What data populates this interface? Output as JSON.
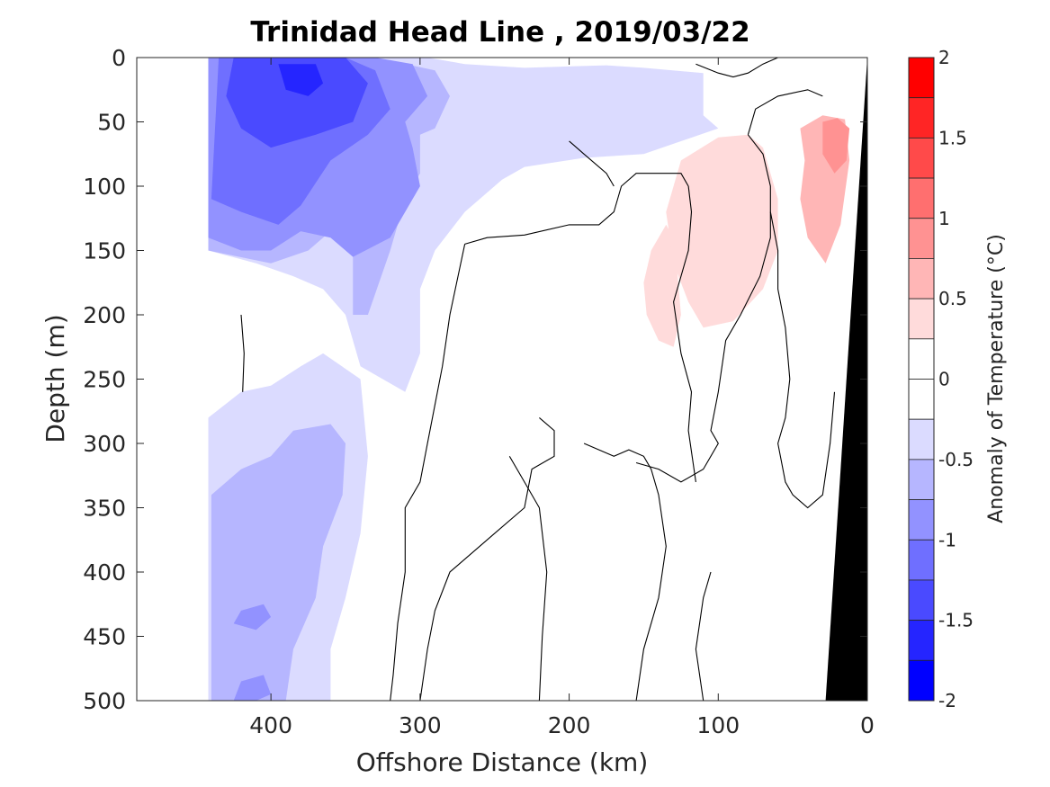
{
  "chart_data": {
    "type": "contour",
    "title": "Trinidad Head Line , 2019/03/22",
    "xlabel": "Offshore Distance (km)",
    "ylabel": "Depth (m)",
    "xlim": [
      490,
      0
    ],
    "ylim": [
      0,
      500
    ],
    "x_reversed": true,
    "y_reversed": true,
    "xticks": [
      "400",
      "300",
      "200",
      "100",
      "0"
    ],
    "xtick_values": [
      400,
      300,
      200,
      100,
      0
    ],
    "yticks": [
      "0",
      "50",
      "100",
      "150",
      "200",
      "250",
      "300",
      "350",
      "400",
      "450",
      "500"
    ],
    "ytick_values": [
      0,
      50,
      100,
      150,
      200,
      250,
      300,
      350,
      400,
      450,
      500
    ],
    "colorbar": {
      "label": "Anomaly of Temperature (°C)",
      "range": [
        -2,
        2
      ],
      "tick_labels": [
        "2",
        "1.5",
        "1",
        "0.5",
        "0",
        "-0.5",
        "-1",
        "-1.5",
        "-2"
      ],
      "tick_values": [
        2,
        1.5,
        1,
        0.5,
        0,
        -0.5,
        -1,
        -1.5,
        -2
      ],
      "levels": [
        {
          "min": 1.75,
          "max": 2.0,
          "color": "#ff0000"
        },
        {
          "min": 1.5,
          "max": 1.75,
          "color": "#ff2525"
        },
        {
          "min": 1.25,
          "max": 1.5,
          "color": "#ff4a4a"
        },
        {
          "min": 1.0,
          "max": 1.25,
          "color": "#ff6f6f"
        },
        {
          "min": 0.75,
          "max": 1.0,
          "color": "#ff9292"
        },
        {
          "min": 0.5,
          "max": 0.75,
          "color": "#ffb6b6"
        },
        {
          "min": 0.25,
          "max": 0.5,
          "color": "#ffdbdb"
        },
        {
          "min": 0.0,
          "max": 0.25,
          "color": "#ffffff"
        },
        {
          "min": -0.25,
          "max": 0.0,
          "color": "#ffffff"
        },
        {
          "min": -0.5,
          "max": -0.25,
          "color": "#dbdbff"
        },
        {
          "min": -0.75,
          "max": -0.5,
          "color": "#b6b6ff"
        },
        {
          "min": -1.0,
          "max": -0.75,
          "color": "#9292ff"
        },
        {
          "min": -1.25,
          "max": -1.0,
          "color": "#6f6fff"
        },
        {
          "min": -1.5,
          "max": -1.25,
          "color": "#4a4aff"
        },
        {
          "min": -1.75,
          "max": -1.5,
          "color": "#2525ff"
        },
        {
          "min": -2.0,
          "max": -1.75,
          "color": "#0000ff"
        }
      ]
    },
    "regions": [
      {
        "name": "upper-cold-patch",
        "anomaly": -0.375,
        "points": [
          [
            442,
            0
          ],
          [
            295,
            0
          ],
          [
            270,
            5
          ],
          [
            230,
            8
          ],
          [
            175,
            6
          ],
          [
            150,
            8
          ],
          [
            110,
            12
          ],
          [
            110,
            45
          ],
          [
            100,
            55
          ],
          [
            150,
            75
          ],
          [
            190,
            78
          ],
          [
            230,
            85
          ],
          [
            245,
            95
          ],
          [
            270,
            120
          ],
          [
            290,
            150
          ],
          [
            300,
            180
          ],
          [
            300,
            230
          ],
          [
            310,
            260
          ],
          [
            325,
            250
          ],
          [
            340,
            240
          ],
          [
            350,
            200
          ],
          [
            365,
            180
          ],
          [
            385,
            170
          ],
          [
            410,
            160
          ],
          [
            442,
            150
          ]
        ]
      },
      {
        "name": "upper-cold-core",
        "anomaly": -0.625,
        "points": [
          [
            442,
            0
          ],
          [
            330,
            0
          ],
          [
            290,
            10
          ],
          [
            280,
            30
          ],
          [
            290,
            55
          ],
          [
            300,
            60
          ],
          [
            300,
            90
          ],
          [
            310,
            110
          ],
          [
            320,
            150
          ],
          [
            335,
            200
          ],
          [
            345,
            200
          ],
          [
            345,
            150
          ],
          [
            355,
            130
          ],
          [
            375,
            150
          ],
          [
            400,
            160
          ],
          [
            442,
            150
          ]
        ]
      },
      {
        "name": "upper-cold-inner",
        "anomaly": -0.875,
        "points": [
          [
            442,
            0
          ],
          [
            330,
            0
          ],
          [
            305,
            5
          ],
          [
            295,
            30
          ],
          [
            310,
            50
          ],
          [
            305,
            70
          ],
          [
            300,
            100
          ],
          [
            320,
            140
          ],
          [
            345,
            155
          ],
          [
            360,
            140
          ],
          [
            380,
            135
          ],
          [
            400,
            150
          ],
          [
            420,
            150
          ],
          [
            442,
            140
          ]
        ]
      },
      {
        "name": "upper-cold-deep",
        "anomaly": -1.125,
        "points": [
          [
            435,
            0
          ],
          [
            350,
            0
          ],
          [
            330,
            10
          ],
          [
            320,
            40
          ],
          [
            335,
            60
          ],
          [
            360,
            80
          ],
          [
            380,
            115
          ],
          [
            395,
            130
          ],
          [
            420,
            120
          ],
          [
            440,
            110
          ]
        ]
      },
      {
        "name": "upper-cold-strong",
        "anomaly": -1.375,
        "points": [
          [
            425,
            0
          ],
          [
            350,
            0
          ],
          [
            335,
            20
          ],
          [
            345,
            50
          ],
          [
            370,
            60
          ],
          [
            400,
            70
          ],
          [
            420,
            55
          ],
          [
            430,
            30
          ]
        ]
      },
      {
        "name": "upper-cold-max",
        "anomaly": -1.625,
        "points": [
          [
            395,
            5
          ],
          [
            370,
            5
          ],
          [
            365,
            20
          ],
          [
            375,
            30
          ],
          [
            390,
            25
          ]
        ]
      },
      {
        "name": "lower-cold-patch",
        "anomaly": -0.375,
        "points": [
          [
            442,
            280
          ],
          [
            420,
            260
          ],
          [
            400,
            255
          ],
          [
            380,
            240
          ],
          [
            365,
            230
          ],
          [
            340,
            250
          ],
          [
            335,
            310
          ],
          [
            340,
            370
          ],
          [
            350,
            420
          ],
          [
            360,
            460
          ],
          [
            360,
            500
          ],
          [
            442,
            500
          ]
        ]
      },
      {
        "name": "lower-cold-core",
        "anomaly": -0.625,
        "points": [
          [
            440,
            340
          ],
          [
            420,
            320
          ],
          [
            400,
            310
          ],
          [
            385,
            290
          ],
          [
            360,
            285
          ],
          [
            350,
            300
          ],
          [
            352,
            340
          ],
          [
            365,
            380
          ],
          [
            370,
            420
          ],
          [
            385,
            460
          ],
          [
            390,
            500
          ],
          [
            440,
            500
          ]
        ]
      },
      {
        "name": "lower-cold-inner",
        "anomaly": -0.875,
        "points": [
          [
            420,
            430
          ],
          [
            405,
            425
          ],
          [
            400,
            435
          ],
          [
            410,
            445
          ],
          [
            425,
            440
          ]
        ]
      },
      {
        "name": "lower-cold-bottom",
        "anomaly": -0.875,
        "points": [
          [
            420,
            485
          ],
          [
            405,
            480
          ],
          [
            400,
            495
          ],
          [
            410,
            500
          ],
          [
            425,
            500
          ]
        ]
      },
      {
        "name": "mid-warm-patch",
        "anomaly": 0.375,
        "points": [
          [
            135,
            130
          ],
          [
            145,
            150
          ],
          [
            150,
            175
          ],
          [
            148,
            200
          ],
          [
            140,
            220
          ],
          [
            130,
            225
          ],
          [
            125,
            200
          ],
          [
            128,
            160
          ],
          [
            130,
            140
          ]
        ]
      },
      {
        "name": "shelf-warm-patch",
        "anomaly": 0.375,
        "points": [
          [
            80,
            60
          ],
          [
            70,
            70
          ],
          [
            60,
            110
          ],
          [
            60,
            150
          ],
          [
            70,
            180
          ],
          [
            90,
            205
          ],
          [
            110,
            210
          ],
          [
            120,
            190
          ],
          [
            130,
            160
          ],
          [
            135,
            120
          ],
          [
            125,
            80
          ],
          [
            100,
            62
          ]
        ]
      },
      {
        "name": "shelf-warm-core",
        "anomaly": 0.625,
        "points": [
          [
            45,
            55
          ],
          [
            30,
            45
          ],
          [
            15,
            48
          ],
          [
            12,
            80
          ],
          [
            18,
            130
          ],
          [
            28,
            160
          ],
          [
            40,
            140
          ],
          [
            45,
            110
          ],
          [
            42,
            80
          ]
        ]
      },
      {
        "name": "shelf-warm-inner",
        "anomaly": 0.875,
        "points": [
          [
            30,
            50
          ],
          [
            20,
            47
          ],
          [
            12,
            55
          ],
          [
            14,
            80
          ],
          [
            22,
            90
          ],
          [
            30,
            75
          ]
        ]
      }
    ],
    "contour_lines": [
      {
        "anomaly": 0,
        "points": [
          [
            115,
            5
          ],
          [
            100,
            12
          ],
          [
            90,
            15
          ],
          [
            80,
            12
          ],
          [
            70,
            5
          ],
          [
            60,
            0
          ]
        ]
      },
      {
        "anomaly": 0,
        "points": [
          [
            80,
            60
          ],
          [
            70,
            75
          ],
          [
            65,
            100
          ],
          [
            65,
            140
          ],
          [
            72,
            170
          ],
          [
            85,
            200
          ],
          [
            95,
            220
          ],
          [
            100,
            260
          ],
          [
            105,
            290
          ],
          [
            100,
            300
          ],
          [
            110,
            320
          ],
          [
            125,
            330
          ],
          [
            140,
            320
          ],
          [
            155,
            315
          ]
        ]
      },
      {
        "anomaly": 0,
        "points": [
          [
            200,
            65
          ],
          [
            190,
            75
          ],
          [
            175,
            90
          ],
          [
            170,
            100
          ]
        ]
      },
      {
        "anomaly": 0,
        "points": [
          [
            270,
            145
          ],
          [
            255,
            140
          ],
          [
            230,
            138
          ],
          [
            200,
            130
          ],
          [
            180,
            130
          ],
          [
            170,
            120
          ],
          [
            165,
            100
          ],
          [
            155,
            90
          ],
          [
            140,
            90
          ],
          [
            125,
            90
          ],
          [
            120,
            100
          ]
        ]
      },
      {
        "anomaly": 0,
        "points": [
          [
            120,
            100
          ],
          [
            118,
            120
          ],
          [
            120,
            150
          ],
          [
            125,
            170
          ],
          [
            130,
            190
          ],
          [
            125,
            230
          ],
          [
            118,
            260
          ],
          [
            120,
            290
          ],
          [
            115,
            330
          ]
        ]
      },
      {
        "anomaly": 0,
        "points": [
          [
            270,
            145
          ],
          [
            280,
            200
          ],
          [
            285,
            240
          ],
          [
            290,
            270
          ],
          [
            295,
            300
          ],
          [
            300,
            330
          ],
          [
            310,
            350
          ],
          [
            310,
            400
          ],
          [
            315,
            440
          ],
          [
            318,
            480
          ],
          [
            320,
            500
          ]
        ]
      },
      {
        "anomaly": 0,
        "points": [
          [
            220,
            280
          ],
          [
            210,
            290
          ],
          [
            210,
            310
          ],
          [
            225,
            320
          ],
          [
            230,
            350
          ],
          [
            250,
            370
          ],
          [
            270,
            390
          ],
          [
            280,
            400
          ],
          [
            290,
            430
          ],
          [
            295,
            460
          ],
          [
            300,
            500
          ]
        ]
      },
      {
        "anomaly": 0,
        "points": [
          [
            420,
            200
          ],
          [
            418,
            230
          ],
          [
            419,
            260
          ]
        ]
      },
      {
        "anomaly": 0,
        "points": [
          [
            65,
            120
          ],
          [
            60,
            150
          ],
          [
            60,
            180
          ],
          [
            55,
            210
          ],
          [
            52,
            250
          ],
          [
            55,
            280
          ],
          [
            60,
            300
          ],
          [
            55,
            330
          ],
          [
            50,
            340
          ],
          [
            40,
            350
          ],
          [
            30,
            340
          ],
          [
            25,
            300
          ],
          [
            22,
            260
          ]
        ]
      },
      {
        "anomaly": 0,
        "points": [
          [
            30,
            30
          ],
          [
            40,
            25
          ],
          [
            60,
            30
          ],
          [
            75,
            40
          ],
          [
            80,
            60
          ]
        ]
      },
      {
        "anomaly": 0,
        "points": [
          [
            190,
            300
          ],
          [
            180,
            305
          ],
          [
            170,
            310
          ],
          [
            160,
            305
          ],
          [
            150,
            310
          ],
          [
            145,
            320
          ],
          [
            140,
            340
          ],
          [
            135,
            380
          ],
          [
            140,
            420
          ],
          [
            150,
            460
          ],
          [
            155,
            500
          ]
        ]
      },
      {
        "anomaly": 0,
        "points": [
          [
            240,
            310
          ],
          [
            230,
            330
          ],
          [
            220,
            350
          ],
          [
            215,
            400
          ],
          [
            218,
            450
          ],
          [
            220,
            500
          ]
        ]
      },
      {
        "anomaly": 0,
        "points": [
          [
            105,
            400
          ],
          [
            110,
            420
          ],
          [
            115,
            460
          ],
          [
            110,
            500
          ]
        ]
      }
    ],
    "land_mask_top_x": 0,
    "land_mask_bottom_x": 28
  }
}
